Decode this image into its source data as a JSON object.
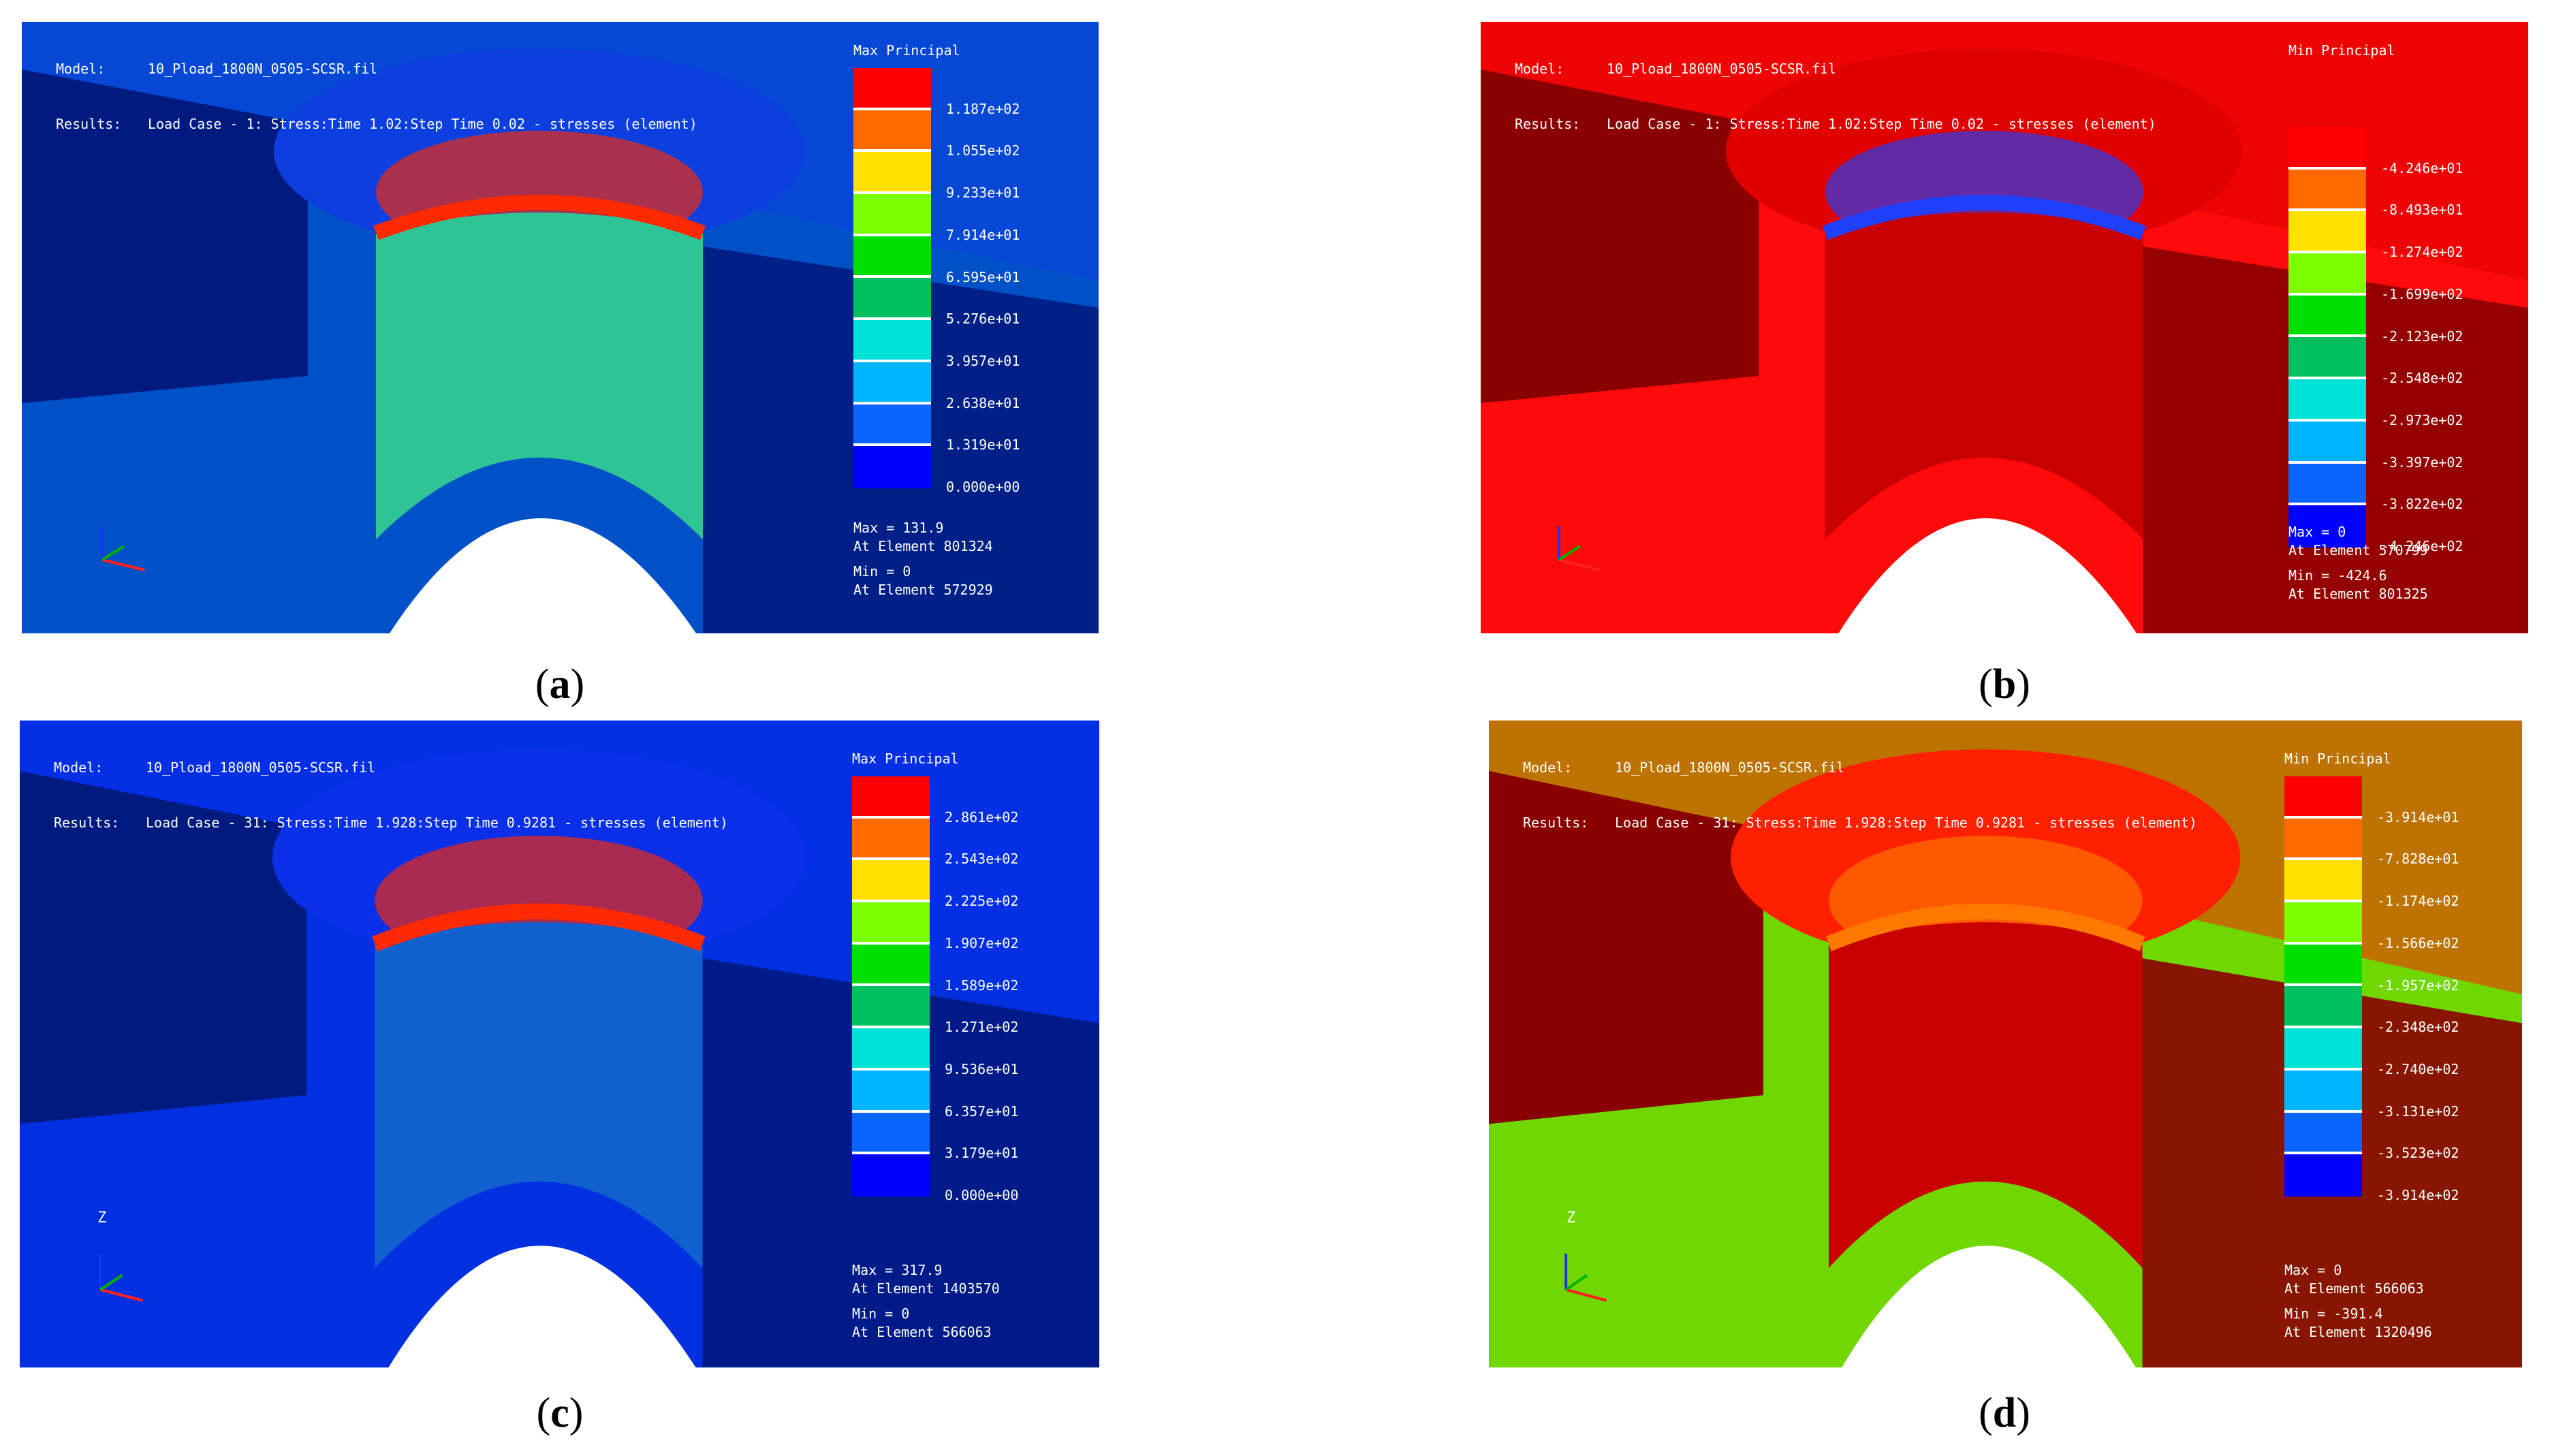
{
  "panels": [
    {
      "id": "a",
      "header": {
        "model_key": "Model:",
        "model": "10_Pload_1800N_0505-SCSR.fil",
        "results_key": "Results:",
        "results": "Load Case - 1: Stress:Time 1.02:Step Time 0.02 - stresses (element)"
      },
      "legend": {
        "title": "Max Principal",
        "ticks": [
          "1.187e+02",
          "1.055e+02",
          "9.233e+01",
          "7.914e+01",
          "6.595e+01",
          "5.276e+01",
          "3.957e+01",
          "2.638e+01",
          "1.319e+01",
          "0.000e+00"
        ],
        "colors": [
          "#ff0000",
          "#ff6a00",
          "#ffe100",
          "#7cff00",
          "#00e000",
          "#00c060",
          "#00e2d8",
          "#00b4ff",
          "#0a64ff",
          "#0000ff"
        ]
      },
      "stats": {
        "max": "Max = 131.9",
        "max_el": "At Element 801324",
        "min": "Min = 0",
        "min_el": "At Element 572929"
      },
      "caption": {
        "paren_open": "(",
        "letter": "a",
        "paren_close": ")"
      },
      "palette": {
        "bg": "#0050c8",
        "dark": "#001a80",
        "top": "#0d3fe0",
        "wall": "#2fc496",
        "hot": "#ff2a00"
      }
    },
    {
      "id": "b",
      "header": {
        "model_key": "Model:",
        "model": "10_Pload_1800N_0505-SCSR.fil",
        "results_key": "Results:",
        "results": "Load Case - 1: Stress:Time 1.02:Step Time 0.02 - stresses (element)"
      },
      "legend": {
        "title": "Min Principal",
        "ticks": [
          "-4.246e+01",
          "-8.493e+01",
          "-1.274e+02",
          "-1.699e+02",
          "-2.123e+02",
          "-2.548e+02",
          "-2.973e+02",
          "-3.397e+02",
          "-3.822e+02",
          "-4.246e+02"
        ],
        "colors": [
          "#ff0000",
          "#ff6a00",
          "#ffe100",
          "#7cff00",
          "#00e000",
          "#00c060",
          "#00e2d8",
          "#00b4ff",
          "#0a64ff",
          "#0000ff"
        ]
      },
      "stats": {
        "max": "Max = 0",
        "max_el": "At Element 570799",
        "min": "Min = -424.6",
        "min_el": "At Element 801325"
      },
      "caption": {
        "paren_open": "(",
        "letter": "b",
        "paren_close": ")"
      },
      "palette": {
        "bg": "#ff0a0a",
        "dark": "#8a0000",
        "top": "#e00000",
        "wall": "#c80000",
        "hot": "#2040ff"
      }
    },
    {
      "id": "c",
      "header": {
        "model_key": "Model:",
        "model": "10_Pload_1800N_0505-SCSR.fil",
        "results_key": "Results:",
        "results": "Load Case - 31: Stress:Time 1.928:Step Time 0.9281 - stresses (element)"
      },
      "legend": {
        "title": "Max Principal",
        "ticks": [
          "2.861e+02",
          "2.543e+02",
          "2.225e+02",
          "1.907e+02",
          "1.589e+02",
          "1.271e+02",
          "9.536e+01",
          "6.357e+01",
          "3.179e+01",
          "0.000e+00"
        ],
        "colors": [
          "#ff0000",
          "#ff6a00",
          "#ffe100",
          "#7cff00",
          "#00e000",
          "#00c060",
          "#00e2d8",
          "#00b4ff",
          "#0a64ff",
          "#0000ff"
        ]
      },
      "stats": {
        "max": "Max = 317.9",
        "max_el": "At Element 1403570",
        "min": "Min = 0",
        "min_el": "At Element 566063"
      },
      "caption": {
        "paren_open": "(",
        "letter": "c",
        "paren_close": ")"
      },
      "axis_z": "Z",
      "palette": {
        "bg": "#0030e0",
        "dark": "#001a80",
        "top": "#0a2fe8",
        "wall": "#1060d0",
        "hot": "#ff2a00"
      }
    },
    {
      "id": "d",
      "header": {
        "model_key": "Model:",
        "model": "10_Pload_1800N_0505-SCSR.fil",
        "results_key": "Results:",
        "results": "Load Case - 31: Stress:Time 1.928:Step Time 0.9281 - stresses (element)"
      },
      "legend": {
        "title": "Min Principal",
        "ticks": [
          "-3.914e+01",
          "-7.828e+01",
          "-1.174e+02",
          "-1.566e+02",
          "-1.957e+02",
          "-2.348e+02",
          "-2.740e+02",
          "-3.131e+02",
          "-3.523e+02",
          "-3.914e+02"
        ],
        "colors": [
          "#ff0000",
          "#ff6a00",
          "#ffe100",
          "#7cff00",
          "#00e000",
          "#00c060",
          "#00e2d8",
          "#00b4ff",
          "#0a64ff",
          "#0000ff"
        ]
      },
      "stats": {
        "max": "Max = 0",
        "max_el": "At Element 566063",
        "min": "Min = -391.4",
        "min_el": "At Element 1320496"
      },
      "caption": {
        "paren_open": "(",
        "letter": "d",
        "paren_close": ")"
      },
      "axis_z": "Z",
      "palette": {
        "bg": "#70d800",
        "dark": "#8a0000",
        "top": "#ff2000",
        "wall": "#c80000",
        "hot": "#ff7800"
      }
    }
  ]
}
